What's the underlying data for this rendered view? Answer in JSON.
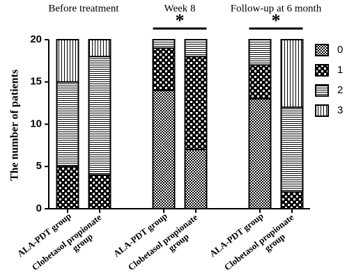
{
  "chart_data": {
    "type": "stacked-bar",
    "ylabel": "The number of patients",
    "groups": [
      "Before treatment",
      "Week 8",
      "Follow-up at 6 month"
    ],
    "categories": [
      "ALA-PDT group",
      "Clobetasol propionate group",
      "ALA-PDT group",
      "Clobetasol propionate group",
      "ALA-PDT group",
      "Clobetasol propionate group"
    ],
    "series": [
      {
        "name": "0",
        "pattern": "fine-checker",
        "values": [
          0,
          0,
          14,
          7,
          13,
          0
        ]
      },
      {
        "name": "1",
        "pattern": "coarse-checker",
        "values": [
          5,
          4,
          5,
          11,
          4,
          2
        ]
      },
      {
        "name": "2",
        "pattern": "horizontal-lines",
        "values": [
          10,
          14,
          1,
          2,
          3,
          10
        ]
      },
      {
        "name": "3",
        "pattern": "vertical-lines",
        "values": [
          5,
          2,
          0,
          0,
          0,
          8
        ]
      }
    ],
    "annotations": [
      {
        "group": 1,
        "text": "*"
      },
      {
        "group": 2,
        "text": "*"
      }
    ],
    "ylim": [
      0,
      20
    ],
    "yticks": [
      0,
      5,
      10,
      15,
      20
    ],
    "legend": "right"
  }
}
